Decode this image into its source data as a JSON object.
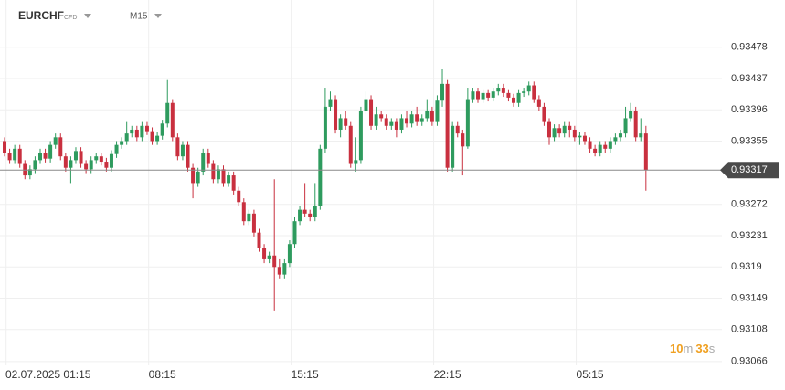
{
  "header": {
    "symbol": "EURCHF",
    "symbol_tag": "CFD",
    "interval": "M15"
  },
  "timer": {
    "minutes": "10",
    "minutes_unit": "m",
    "seconds": "33",
    "seconds_unit": "s"
  },
  "chart_data": {
    "type": "candlestick",
    "categories": [
      null,
      null,
      null,
      "02.07.2025 01:15",
      null,
      null,
      null,
      null,
      null,
      null,
      null,
      null,
      null,
      null,
      null,
      null,
      null,
      null,
      null,
      null,
      null,
      null,
      null,
      null,
      null,
      null,
      null,
      null,
      null,
      null,
      null,
      "08:15",
      null,
      null,
      null,
      null,
      null,
      null,
      null,
      null,
      null,
      null,
      null,
      null,
      null,
      null,
      null,
      null,
      null,
      null,
      null,
      null,
      null,
      null,
      null,
      null,
      null,
      null,
      null,
      "15:15",
      null,
      null,
      null,
      null,
      null,
      null,
      null,
      null,
      null,
      null,
      null,
      null,
      null,
      null,
      null,
      null,
      null,
      null,
      null,
      null,
      null,
      null,
      null,
      null,
      null,
      null,
      null,
      "22:15",
      null,
      null,
      null,
      null,
      null,
      null,
      null,
      null,
      null,
      null,
      null,
      null,
      null,
      null,
      null,
      null,
      null,
      null,
      null,
      null,
      null,
      null,
      null,
      null,
      null,
      null,
      null,
      "05:15",
      null,
      null,
      null,
      null,
      null,
      null,
      null,
      null,
      null,
      null,
      null
    ],
    "open": [
      0.93355,
      0.9334,
      0.9333,
      0.93345,
      0.93325,
      0.9331,
      0.93318,
      0.9333,
      0.9334,
      0.93332,
      0.9335,
      0.9336,
      0.93335,
      0.9332,
      0.9333,
      0.93342,
      0.93325,
      0.93318,
      0.9333,
      0.93335,
      0.93328,
      0.9332,
      0.93338,
      0.9335,
      0.93355,
      0.93365,
      0.9337,
      0.9336,
      0.93375,
      0.93368,
      0.93355,
      0.93362,
      0.93378,
      0.93405,
      0.9336,
      0.93335,
      0.9335,
      0.9332,
      0.933,
      0.93315,
      0.9334,
      0.93325,
      0.93305,
      0.93318,
      0.933,
      0.9331,
      0.9329,
      0.93275,
      0.9325,
      0.9326,
      0.93235,
      0.93215,
      0.932,
      0.93205,
      0.9319,
      0.9318,
      0.93195,
      0.9322,
      0.9325,
      0.93265,
      0.9326,
      0.93255,
      0.9327,
      0.93345,
      0.934,
      0.9341,
      0.9337,
      0.93385,
      0.93375,
      0.93325,
      0.9333,
      0.93395,
      0.9341,
      0.93375,
      0.9339,
      0.93385,
      0.93375,
      0.9338,
      0.9337,
      0.93385,
      0.93378,
      0.9339,
      0.9338,
      0.93385,
      0.93395,
      0.9338,
      0.93408,
      0.9343,
      0.9332,
      0.93375,
      0.93365,
      0.93348,
      0.9341,
      0.9342,
      0.9341,
      0.93418,
      0.93412,
      0.9342,
      0.93425,
      0.93418,
      0.93412,
      0.93405,
      0.93418,
      0.9342,
      0.93428,
      0.9341,
      0.934,
      0.9338,
      0.9336,
      0.93372,
      0.93365,
      0.93375,
      0.9337,
      0.9336,
      0.93362,
      0.93355,
      0.93345,
      0.9334,
      0.9335,
      0.93345,
      0.93355,
      0.9336,
      0.93365,
      0.93385,
      0.93395,
      0.9336,
      0.93365
    ],
    "high": [
      0.9336,
      0.93345,
      0.9335,
      0.9335,
      0.9333,
      0.93323,
      0.93335,
      0.93345,
      0.93345,
      0.93355,
      0.93365,
      0.93365,
      0.9334,
      0.93335,
      0.93347,
      0.93347,
      0.9333,
      0.93335,
      0.9334,
      0.9334,
      0.93333,
      0.93343,
      0.93355,
      0.9336,
      0.9338,
      0.93375,
      0.93375,
      0.9338,
      0.9338,
      0.93373,
      0.93367,
      0.93383,
      0.93435,
      0.9341,
      0.93365,
      0.93355,
      0.93355,
      0.93325,
      0.9332,
      0.93345,
      0.93345,
      0.9333,
      0.93323,
      0.93323,
      0.93315,
      0.93315,
      0.93295,
      0.9328,
      0.93265,
      0.93265,
      0.9324,
      0.9322,
      0.9321,
      0.93305,
      0.932,
      0.932,
      0.93225,
      0.93255,
      0.9327,
      0.933,
      0.93265,
      0.933,
      0.9335,
      0.93425,
      0.9342,
      0.93415,
      0.9339,
      0.93395,
      0.9338,
      0.9336,
      0.934,
      0.9342,
      0.93415,
      0.934,
      0.93395,
      0.9339,
      0.93385,
      0.93385,
      0.9339,
      0.93395,
      0.93395,
      0.934,
      0.9339,
      0.9341,
      0.934,
      0.93415,
      0.9345,
      0.93435,
      0.9338,
      0.9338,
      0.9337,
      0.93425,
      0.93425,
      0.93425,
      0.93423,
      0.93423,
      0.93425,
      0.9343,
      0.9343,
      0.93423,
      0.93417,
      0.93423,
      0.93425,
      0.93433,
      0.93433,
      0.93415,
      0.93405,
      0.93385,
      0.93377,
      0.93377,
      0.9338,
      0.9338,
      0.93375,
      0.93367,
      0.93367,
      0.9336,
      0.9335,
      0.93355,
      0.93355,
      0.9336,
      0.93365,
      0.9337,
      0.934,
      0.93405,
      0.934,
      0.93385,
      0.93375
    ],
    "low": [
      0.93335,
      0.93325,
      0.93325,
      0.9332,
      0.93305,
      0.93305,
      0.93313,
      0.93325,
      0.93327,
      0.93327,
      0.93345,
      0.9333,
      0.93315,
      0.933,
      0.93325,
      0.9332,
      0.93313,
      0.93313,
      0.93325,
      0.93323,
      0.93315,
      0.93315,
      0.93333,
      0.93345,
      0.9335,
      0.9336,
      0.93355,
      0.93355,
      0.93363,
      0.9335,
      0.9335,
      0.93357,
      0.93373,
      0.93355,
      0.9333,
      0.9333,
      0.93315,
      0.9328,
      0.93295,
      0.9331,
      0.9332,
      0.933,
      0.933,
      0.93295,
      0.93295,
      0.93285,
      0.9327,
      0.93245,
      0.93245,
      0.9323,
      0.9321,
      0.93195,
      0.93195,
      0.93133,
      0.93175,
      0.93175,
      0.9319,
      0.93215,
      0.93245,
      0.93255,
      0.9325,
      0.9325,
      0.93265,
      0.9334,
      0.93395,
      0.93365,
      0.9336,
      0.9337,
      0.9332,
      0.93315,
      0.93325,
      0.9339,
      0.9337,
      0.9337,
      0.9338,
      0.9337,
      0.9337,
      0.9336,
      0.93365,
      0.93373,
      0.93373,
      0.93375,
      0.93375,
      0.9338,
      0.93375,
      0.93375,
      0.934,
      0.93315,
      0.93315,
      0.9336,
      0.9331,
      0.93345,
      0.93405,
      0.93405,
      0.93405,
      0.93407,
      0.93407,
      0.93415,
      0.93413,
      0.93407,
      0.934,
      0.934,
      0.93413,
      0.93415,
      0.93405,
      0.93395,
      0.93375,
      0.9335,
      0.93355,
      0.9336,
      0.9336,
      0.9336,
      0.93355,
      0.9335,
      0.9335,
      0.9334,
      0.93335,
      0.93335,
      0.9334,
      0.9334,
      0.9335,
      0.93355,
      0.9336,
      0.9338,
      0.93355,
      0.93355,
      0.9329
    ],
    "close": [
      0.9334,
      0.9333,
      0.93345,
      0.93325,
      0.9331,
      0.93318,
      0.9333,
      0.9334,
      0.93332,
      0.9335,
      0.9336,
      0.93335,
      0.9332,
      0.9333,
      0.93342,
      0.93325,
      0.93318,
      0.9333,
      0.93335,
      0.93328,
      0.9332,
      0.93338,
      0.9335,
      0.93355,
      0.93365,
      0.9337,
      0.9336,
      0.93375,
      0.93368,
      0.93355,
      0.93362,
      0.93378,
      0.93405,
      0.9336,
      0.93335,
      0.9335,
      0.9332,
      0.933,
      0.93315,
      0.9334,
      0.93325,
      0.93305,
      0.93318,
      0.933,
      0.9331,
      0.9329,
      0.93275,
      0.9325,
      0.9326,
      0.93235,
      0.93215,
      0.932,
      0.93205,
      0.9319,
      0.9318,
      0.93195,
      0.9322,
      0.9325,
      0.93265,
      0.9326,
      0.93255,
      0.9327,
      0.93345,
      0.934,
      0.9341,
      0.9337,
      0.93385,
      0.93375,
      0.93325,
      0.9333,
      0.93395,
      0.9341,
      0.93375,
      0.9339,
      0.93385,
      0.93375,
      0.9338,
      0.9337,
      0.93385,
      0.93378,
      0.9339,
      0.9338,
      0.93385,
      0.93395,
      0.9338,
      0.93408,
      0.9343,
      0.9332,
      0.93375,
      0.93365,
      0.93348,
      0.9341,
      0.9342,
      0.9341,
      0.93418,
      0.93412,
      0.9342,
      0.93425,
      0.93418,
      0.93412,
      0.93405,
      0.93418,
      0.9342,
      0.93428,
      0.9341,
      0.934,
      0.9338,
      0.9336,
      0.93372,
      0.93365,
      0.93375,
      0.9337,
      0.9336,
      0.93362,
      0.93355,
      0.93345,
      0.9334,
      0.9335,
      0.93345,
      0.93355,
      0.9336,
      0.93365,
      0.93385,
      0.93395,
      0.9336,
      0.93365,
      0.93317
    ],
    "up_color": "#2e9b5e",
    "down_color": "#c9303f",
    "ylim": [
      0.93061,
      0.9354
    ],
    "yticks": [
      0.93478,
      0.93437,
      0.93396,
      0.93355,
      0.93272,
      0.93231,
      0.9319,
      0.93149,
      0.93108,
      0.93066
    ],
    "grid": true
  }
}
